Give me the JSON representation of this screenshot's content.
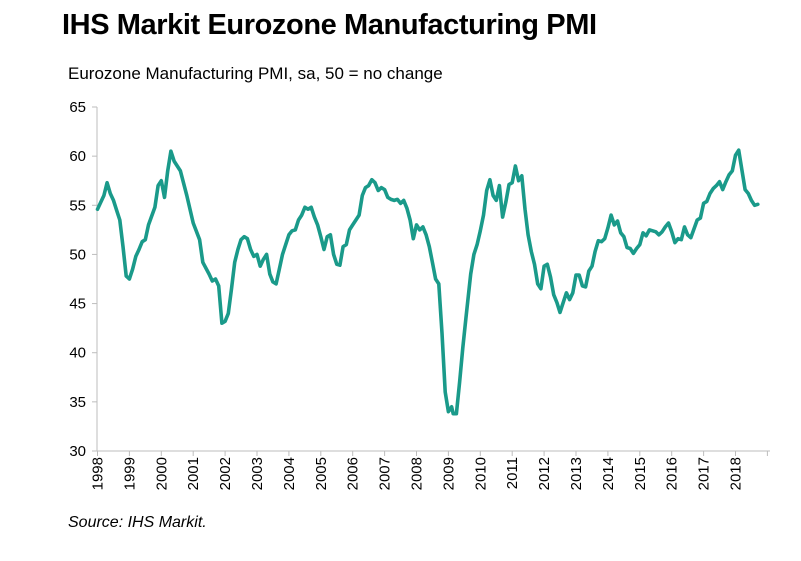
{
  "title": "IHS Markit Eurozone Manufacturing PMI",
  "subtitle": "Eurozone Manufacturing PMI, sa, 50 = no change",
  "source": "Source: IHS Markit.",
  "colors": {
    "line": "#1a9a8a",
    "axis": "#bdbdbd"
  },
  "chart_data": {
    "type": "line",
    "title": "IHS Markit Eurozone Manufacturing PMI",
    "ylabel": "Eurozone Manufacturing PMI, sa, 50 = no change",
    "xlabel": "",
    "ylim": [
      30,
      65
    ],
    "xlim": [
      1998.0,
      2018.9
    ],
    "yticks": [
      30,
      35,
      40,
      45,
      50,
      55,
      60,
      65
    ],
    "xtick_labels": [
      "1998",
      "1999",
      "2000",
      "2001",
      "2002",
      "2003",
      "2004",
      "2005",
      "2006",
      "2007",
      "2008",
      "2009",
      "2010",
      "2011",
      "2012",
      "2013",
      "2014",
      "2015",
      "2016",
      "2017",
      "2018"
    ],
    "grid": false,
    "legend": "none",
    "series": [
      {
        "points": [
          [
            1998.0,
            54.6
          ],
          [
            1998.2,
            56.0
          ],
          [
            1998.3,
            57.3
          ],
          [
            1998.4,
            56.2
          ],
          [
            1998.5,
            55.5
          ],
          [
            1998.6,
            54.5
          ],
          [
            1998.7,
            53.5
          ],
          [
            1998.8,
            50.8
          ],
          [
            1998.9,
            47.8
          ],
          [
            1999.0,
            47.5
          ],
          [
            1999.1,
            48.5
          ],
          [
            1999.2,
            49.8
          ],
          [
            1999.3,
            50.5
          ],
          [
            1999.4,
            51.3
          ],
          [
            1999.5,
            51.5
          ],
          [
            1999.6,
            53.0
          ],
          [
            1999.8,
            54.8
          ],
          [
            1999.9,
            57.0
          ],
          [
            2000.0,
            57.5
          ],
          [
            2000.1,
            55.8
          ],
          [
            2000.2,
            58.5
          ],
          [
            2000.3,
            60.5
          ],
          [
            2000.4,
            59.5
          ],
          [
            2000.6,
            58.5
          ],
          [
            2000.8,
            56.0
          ],
          [
            2001.0,
            53.2
          ],
          [
            2001.2,
            51.5
          ],
          [
            2001.3,
            49.2
          ],
          [
            2001.5,
            48.0
          ],
          [
            2001.6,
            47.3
          ],
          [
            2001.7,
            47.5
          ],
          [
            2001.8,
            46.8
          ],
          [
            2001.9,
            43.0
          ],
          [
            2002.0,
            43.2
          ],
          [
            2002.1,
            44.0
          ],
          [
            2002.2,
            46.5
          ],
          [
            2002.3,
            49.2
          ],
          [
            2002.4,
            50.5
          ],
          [
            2002.5,
            51.5
          ],
          [
            2002.6,
            51.8
          ],
          [
            2002.7,
            51.6
          ],
          [
            2002.8,
            50.5
          ],
          [
            2002.9,
            49.8
          ],
          [
            2003.0,
            50.0
          ],
          [
            2003.1,
            48.8
          ],
          [
            2003.2,
            49.5
          ],
          [
            2003.3,
            50.0
          ],
          [
            2003.4,
            48.0
          ],
          [
            2003.5,
            47.2
          ],
          [
            2003.6,
            47.0
          ],
          [
            2003.7,
            48.5
          ],
          [
            2003.8,
            50.0
          ],
          [
            2003.9,
            51.0
          ],
          [
            2004.0,
            52.0
          ],
          [
            2004.1,
            52.4
          ],
          [
            2004.2,
            52.5
          ],
          [
            2004.3,
            53.5
          ],
          [
            2004.4,
            54.0
          ],
          [
            2004.5,
            54.8
          ],
          [
            2004.6,
            54.6
          ],
          [
            2004.7,
            54.8
          ],
          [
            2004.8,
            53.8
          ],
          [
            2004.9,
            53.0
          ],
          [
            2005.0,
            51.8
          ],
          [
            2005.1,
            50.5
          ],
          [
            2005.2,
            51.8
          ],
          [
            2005.3,
            52.0
          ],
          [
            2005.4,
            50.0
          ],
          [
            2005.5,
            49.0
          ],
          [
            2005.6,
            48.9
          ],
          [
            2005.7,
            50.8
          ],
          [
            2005.8,
            51.0
          ],
          [
            2005.9,
            52.5
          ],
          [
            2006.0,
            53.0
          ],
          [
            2006.1,
            53.5
          ],
          [
            2006.2,
            54.0
          ],
          [
            2006.3,
            56.0
          ],
          [
            2006.4,
            56.8
          ],
          [
            2006.5,
            57.0
          ],
          [
            2006.6,
            57.6
          ],
          [
            2006.7,
            57.3
          ],
          [
            2006.8,
            56.5
          ],
          [
            2006.9,
            56.8
          ],
          [
            2007.0,
            56.6
          ],
          [
            2007.1,
            55.8
          ],
          [
            2007.2,
            55.6
          ],
          [
            2007.3,
            55.5
          ],
          [
            2007.4,
            55.6
          ],
          [
            2007.5,
            55.2
          ],
          [
            2007.6,
            55.5
          ],
          [
            2007.7,
            54.7
          ],
          [
            2007.8,
            53.5
          ],
          [
            2007.9,
            51.6
          ],
          [
            2008.0,
            53.0
          ],
          [
            2008.1,
            52.5
          ],
          [
            2008.2,
            52.8
          ],
          [
            2008.3,
            52.0
          ],
          [
            2008.4,
            50.8
          ],
          [
            2008.5,
            49.2
          ],
          [
            2008.6,
            47.5
          ],
          [
            2008.7,
            47.0
          ],
          [
            2008.8,
            42.0
          ],
          [
            2008.9,
            36.0
          ],
          [
            2009.0,
            34.0
          ],
          [
            2009.1,
            34.5
          ],
          [
            2009.15,
            33.8
          ],
          [
            2009.25,
            33.8
          ],
          [
            2009.35,
            37.0
          ],
          [
            2009.45,
            40.5
          ],
          [
            2009.55,
            43.5
          ],
          [
            2009.7,
            48.0
          ],
          [
            2009.8,
            50.0
          ],
          [
            2009.9,
            51.0
          ],
          [
            2010.0,
            52.4
          ],
          [
            2010.1,
            54.0
          ],
          [
            2010.2,
            56.5
          ],
          [
            2010.3,
            57.6
          ],
          [
            2010.4,
            56.0
          ],
          [
            2010.5,
            55.5
          ],
          [
            2010.6,
            57.0
          ],
          [
            2010.7,
            53.8
          ],
          [
            2010.8,
            55.3
          ],
          [
            2010.9,
            57.1
          ],
          [
            2011.0,
            57.3
          ],
          [
            2011.1,
            59.0
          ],
          [
            2011.2,
            57.5
          ],
          [
            2011.3,
            58.0
          ],
          [
            2011.4,
            54.6
          ],
          [
            2011.5,
            52.0
          ],
          [
            2011.6,
            50.3
          ],
          [
            2011.7,
            49.0
          ],
          [
            2011.8,
            47.0
          ],
          [
            2011.9,
            46.5
          ],
          [
            2012.0,
            48.8
          ],
          [
            2012.1,
            49.0
          ],
          [
            2012.2,
            47.7
          ],
          [
            2012.3,
            45.9
          ],
          [
            2012.4,
            45.1
          ],
          [
            2012.5,
            44.1
          ],
          [
            2012.6,
            45.1
          ],
          [
            2012.7,
            46.1
          ],
          [
            2012.8,
            45.4
          ],
          [
            2012.9,
            46.1
          ],
          [
            2013.0,
            47.9
          ],
          [
            2013.1,
            47.9
          ],
          [
            2013.2,
            46.8
          ],
          [
            2013.3,
            46.7
          ],
          [
            2013.4,
            48.3
          ],
          [
            2013.5,
            48.8
          ],
          [
            2013.6,
            50.3
          ],
          [
            2013.7,
            51.4
          ],
          [
            2013.8,
            51.3
          ],
          [
            2013.9,
            51.6
          ],
          [
            2014.0,
            52.7
          ],
          [
            2014.1,
            54.0
          ],
          [
            2014.2,
            53.0
          ],
          [
            2014.3,
            53.4
          ],
          [
            2014.4,
            52.2
          ],
          [
            2014.5,
            51.8
          ],
          [
            2014.6,
            50.7
          ],
          [
            2014.7,
            50.6
          ],
          [
            2014.8,
            50.1
          ],
          [
            2014.9,
            50.6
          ],
          [
            2015.0,
            51.0
          ],
          [
            2015.1,
            52.2
          ],
          [
            2015.2,
            51.9
          ],
          [
            2015.3,
            52.5
          ],
          [
            2015.4,
            52.4
          ],
          [
            2015.5,
            52.3
          ],
          [
            2015.6,
            52.0
          ],
          [
            2015.7,
            52.3
          ],
          [
            2015.8,
            52.8
          ],
          [
            2015.9,
            53.2
          ],
          [
            2016.0,
            52.3
          ],
          [
            2016.1,
            51.2
          ],
          [
            2016.2,
            51.6
          ],
          [
            2016.3,
            51.5
          ],
          [
            2016.4,
            52.8
          ],
          [
            2016.5,
            52.0
          ],
          [
            2016.6,
            51.7
          ],
          [
            2016.7,
            52.6
          ],
          [
            2016.8,
            53.5
          ],
          [
            2016.9,
            53.7
          ],
          [
            2017.0,
            55.2
          ],
          [
            2017.1,
            55.4
          ],
          [
            2017.2,
            56.2
          ],
          [
            2017.3,
            56.7
          ],
          [
            2017.4,
            57.0
          ],
          [
            2017.5,
            57.4
          ],
          [
            2017.6,
            56.6
          ],
          [
            2017.7,
            57.4
          ],
          [
            2017.8,
            58.1
          ],
          [
            2017.9,
            58.5
          ],
          [
            2018.0,
            60.1
          ],
          [
            2018.1,
            60.6
          ],
          [
            2018.2,
            58.6
          ],
          [
            2018.3,
            56.6
          ],
          [
            2018.4,
            56.2
          ],
          [
            2018.5,
            55.5
          ],
          [
            2018.6,
            55.0
          ],
          [
            2018.7,
            55.1
          ]
        ]
      }
    ]
  }
}
